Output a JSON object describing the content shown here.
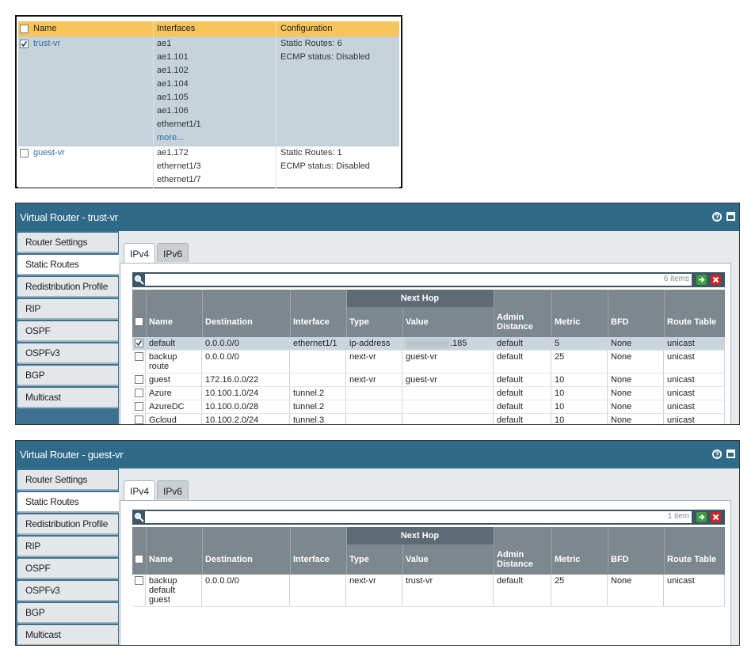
{
  "vr_table": {
    "headers": [
      "Name",
      "Interfaces",
      "Configuration"
    ],
    "rows": [
      {
        "name": "trust-vr",
        "checked": true,
        "interfaces": [
          "ae1",
          "ae1.101",
          "ae1.102",
          "ae1.104",
          "ae1.105",
          "ae1.106",
          "ethernet1/1"
        ],
        "more": "more...",
        "configuration": [
          "Static Routes: 6",
          "ECMP status: Disabled"
        ]
      },
      {
        "name": "guest-vr",
        "checked": false,
        "interfaces": [
          "ae1.172",
          "ethernet1/3",
          "ethernet1/7"
        ],
        "configuration": [
          "Static Routes: 1",
          "ECMP status: Disabled"
        ]
      }
    ]
  },
  "panels": [
    {
      "title": "Virtual Router - trust-vr",
      "nav": [
        "Router Settings",
        "Static Routes",
        "Redistribution Profile",
        "RIP",
        "OSPF",
        "OSPFv3",
        "BGP",
        "Multicast"
      ],
      "active_nav": 1,
      "tabs": [
        "IPv4",
        "IPv6"
      ],
      "active_tab": 0,
      "item_count": "6 items",
      "group_header": "Next Hop",
      "columns": [
        "Name",
        "Destination",
        "Interface",
        "Type",
        "Value",
        "Admin Distance",
        "Metric",
        "BFD",
        "Route Table"
      ],
      "rows": [
        [
          "default",
          "0.0.0.0/0",
          "ethernet1/1",
          "ip-address",
          ".185",
          "default",
          "5",
          "None",
          "unicast"
        ],
        [
          "backup route",
          "0.0.0.0/0",
          null,
          "next-vr",
          "guest-vr",
          "default",
          "25",
          "None",
          "unicast"
        ],
        [
          "guest",
          "172.16.0.0/22",
          null,
          "next-vr",
          "guest-vr",
          "default",
          "10",
          "None",
          "unicast"
        ],
        [
          "Azure",
          "10.100.1.0/24",
          "tunnel.2",
          null,
          null,
          "default",
          "10",
          "None",
          "unicast"
        ],
        [
          "AzureDC",
          "10.100.0.0/28",
          "tunnel.2",
          null,
          null,
          "default",
          "10",
          "None",
          "unicast"
        ],
        [
          "Gcloud",
          "10.100.2.0/24",
          "tunnel.3",
          null,
          null,
          "default",
          "10",
          "None",
          "unicast"
        ]
      ],
      "checked": [
        true,
        false,
        false,
        false,
        false,
        false
      ],
      "blurred": [
        [
          0,
          4
        ]
      ]
    },
    {
      "title": "Virtual Router - guest-vr",
      "nav": [
        "Router Settings",
        "Static Routes",
        "Redistribution Profile",
        "RIP",
        "OSPF",
        "OSPFv3",
        "BGP",
        "Multicast"
      ],
      "active_nav": 1,
      "tabs": [
        "IPv4",
        "IPv6"
      ],
      "active_tab": 0,
      "item_count": "1 item",
      "group_header": "Next Hop",
      "columns": [
        "Name",
        "Destination",
        "Interface",
        "Type",
        "Value",
        "Admin Distance",
        "Metric",
        "BFD",
        "Route Table"
      ],
      "rows": [
        [
          "backup default guest",
          "0.0.0.0/0",
          null,
          "next-vr",
          "trust-vr",
          "default",
          "25",
          "None",
          "unicast"
        ]
      ],
      "checked": [
        false
      ],
      "blurred": []
    }
  ]
}
